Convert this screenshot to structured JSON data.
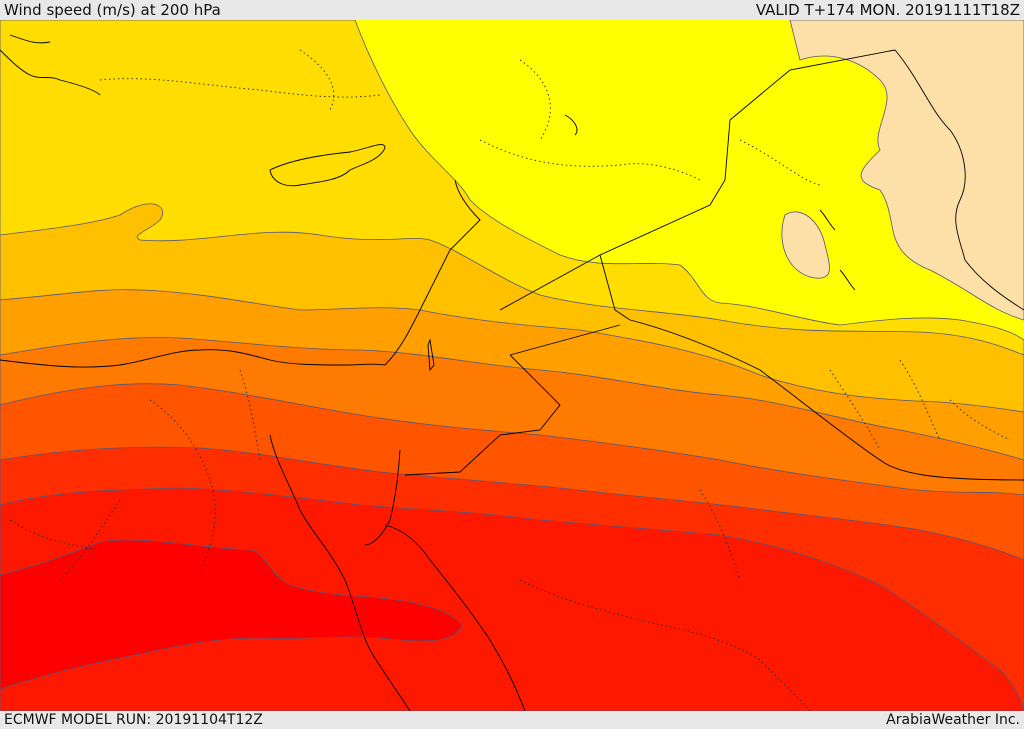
{
  "header": {
    "title": "Wind speed (m/s) at 200 hPa",
    "valid": "VALID T+174 MON. 20191111T18Z"
  },
  "footer": {
    "model_run": "ECMWF MODEL RUN: 20191104T12Z",
    "credit": "ArabiaWeather Inc."
  },
  "colors": {
    "band_lightest": "#fde0a8",
    "band_yellow": "#ffff00",
    "band_gold": "#ffdd00",
    "band_amber": "#ffc000",
    "band_orange": "#ffa000",
    "band_dark_orange": "#ff7a00",
    "band_orange_red": "#ff5500",
    "band_red_orange": "#ff2e00",
    "band_red": "#ff1800",
    "band_core": "#ff0000",
    "contour_line": "#555577",
    "coast_line": "#000000"
  }
}
